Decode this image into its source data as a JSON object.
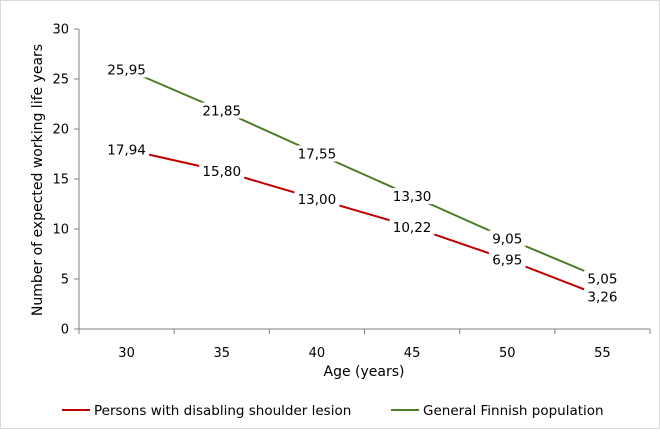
{
  "chart_data": {
    "type": "line",
    "title": "",
    "xlabel": "Age (years)",
    "ylabel": "Number of expected working life years",
    "categories": [
      "30",
      "35",
      "40",
      "45",
      "50",
      "55"
    ],
    "ylim": [
      0,
      30
    ],
    "yticks": [
      "0",
      "5",
      "10",
      "15",
      "20",
      "25",
      "30"
    ],
    "grid": false,
    "legend_position": "bottom",
    "series": [
      {
        "name": "Persons with disabling shoulder lesion",
        "color": "#c00000",
        "values": [
          17.94,
          15.8,
          13.0,
          10.22,
          6.95,
          3.26
        ],
        "labels": [
          "17,94",
          "15,80",
          "13,00",
          "10,22",
          "6,95",
          "3,26"
        ]
      },
      {
        "name": "General Finnish population",
        "color": "#4f7a28",
        "values": [
          25.95,
          21.85,
          17.55,
          13.3,
          9.05,
          5.05
        ],
        "labels": [
          "25,95",
          "21,85",
          "17,55",
          "13,30",
          "9,05",
          "5,05"
        ]
      }
    ]
  }
}
